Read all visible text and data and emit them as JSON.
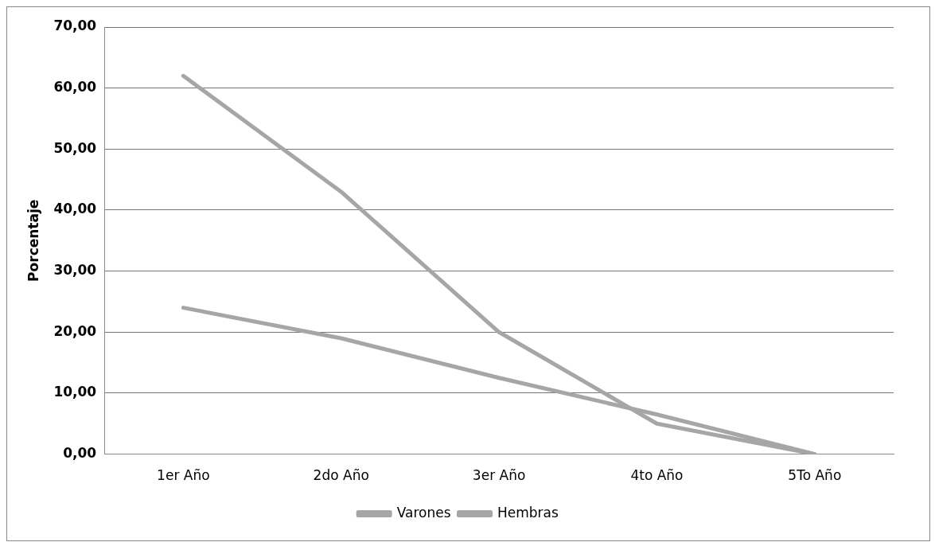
{
  "chart_data": {
    "type": "line",
    "ylabel": "Porcentaje",
    "categories": [
      "1er Año",
      "2do Año",
      "3er Año",
      "4to Año",
      "5To Año"
    ],
    "series": [
      {
        "name": "Varones",
        "color": "#a6a6a6",
        "values": [
          62,
          43,
          20,
          5,
          0
        ]
      },
      {
        "name": "Hembras",
        "color": "#a6a6a6",
        "values": [
          24,
          19,
          12.5,
          6.5,
          0
        ]
      }
    ],
    "ylim": [
      0,
      70
    ],
    "yticks": [
      {
        "value": 0,
        "label": "0,00"
      },
      {
        "value": 10,
        "label": "10,00"
      },
      {
        "value": 20,
        "label": "20,00"
      },
      {
        "value": 30,
        "label": "30,00"
      },
      {
        "value": 40,
        "label": "40,00"
      },
      {
        "value": 50,
        "label": "50,00"
      },
      {
        "value": 60,
        "label": "60,00"
      },
      {
        "value": 70,
        "label": "70,00"
      }
    ],
    "grid": "y",
    "legend": "bottom",
    "marker": "none",
    "line_style": "solid"
  }
}
